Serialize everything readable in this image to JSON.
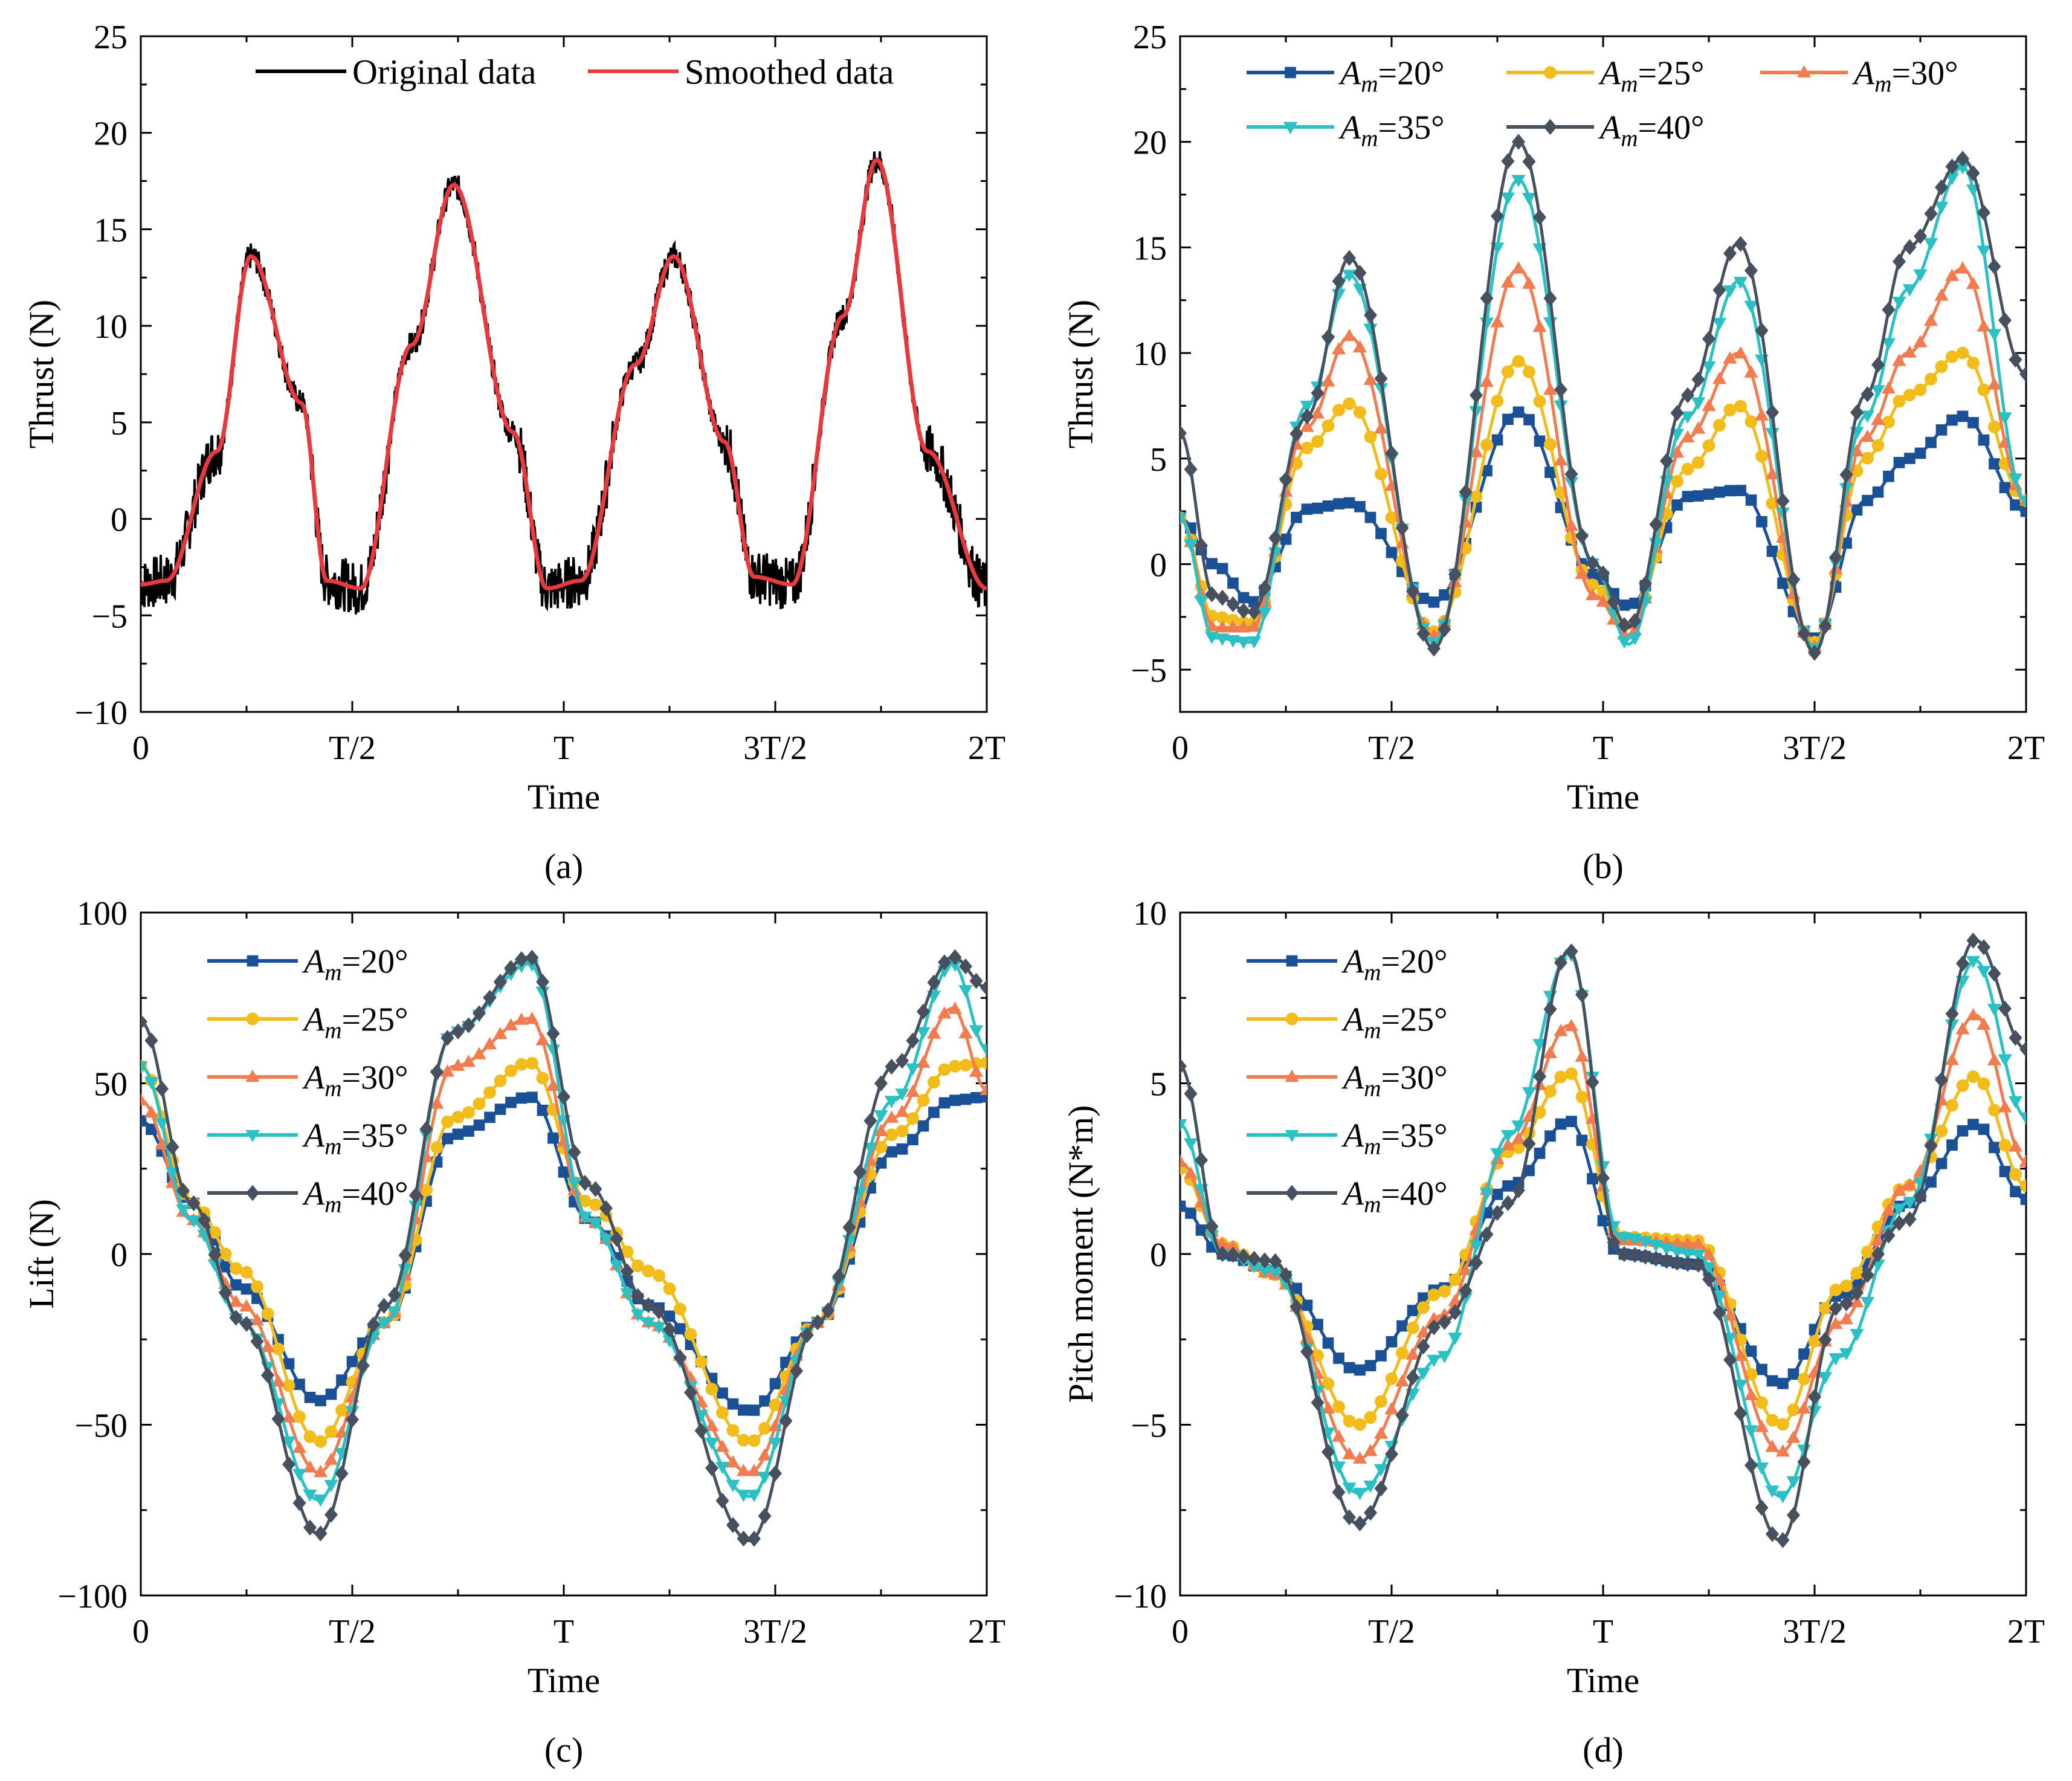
{
  "figure": {
    "x_ticks": [
      "0",
      "T/2",
      "T",
      "3T/2",
      "2T"
    ],
    "xlabel": "Time",
    "legend_prefix": "A",
    "legend_sub": "m"
  },
  "chart_data": [
    {
      "panel": "(a)",
      "type": "line",
      "title": "",
      "xlabel": "Time",
      "ylabel": "Thrust (N)",
      "xlim": [
        0,
        2
      ],
      "ylim": [
        -10,
        25
      ],
      "yticks": [
        -10,
        -5,
        0,
        5,
        10,
        15,
        20,
        25
      ],
      "ytick_labels": [
        "−10",
        "−5",
        "0",
        "5",
        "10",
        "15",
        "20",
        "25"
      ],
      "x_ticks": [
        "0",
        "T/2",
        "T",
        "3T/2",
        "2T"
      ],
      "legend": "top-center-row",
      "x_key": [
        0,
        0.06,
        0.18,
        0.26,
        0.38,
        0.44,
        0.52,
        0.64,
        0.74,
        0.88,
        0.96,
        1.04,
        1.17,
        1.26,
        1.38,
        1.45,
        1.54,
        1.66,
        1.74,
        1.86,
        2.0
      ],
      "series": [
        {
          "name": "Original data",
          "color": "#000000",
          "noisy": true,
          "y_key": [
            -3.4,
            -3.2,
            3.5,
            13.6,
            6.0,
            -3.2,
            -3.6,
            9.0,
            17.3,
            4.5,
            -3.6,
            -3.2,
            8.0,
            13.6,
            4.0,
            -3.0,
            -3.4,
            10.5,
            18.6,
            3.5,
            -3.6
          ]
        },
        {
          "name": "Smoothed data",
          "color": "#E8393E",
          "noisy": false,
          "y_key": [
            -3.4,
            -3.2,
            3.5,
            13.6,
            6.0,
            -3.2,
            -3.6,
            9.0,
            17.3,
            4.5,
            -3.6,
            -3.2,
            8.0,
            13.6,
            4.0,
            -3.0,
            -3.4,
            10.5,
            18.6,
            3.5,
            -3.6
          ]
        }
      ]
    },
    {
      "panel": "(b)",
      "type": "line",
      "title": "",
      "xlabel": "Time",
      "ylabel": "Thrust (N)",
      "xlim": [
        0,
        2
      ],
      "ylim": [
        -7,
        25
      ],
      "yticks": [
        -5,
        0,
        5,
        10,
        15,
        20,
        25
      ],
      "ytick_labels": [
        "−5",
        "0",
        "5",
        "10",
        "15",
        "20",
        "25"
      ],
      "x_ticks": [
        "0",
        "T/2",
        "T",
        "3T/2",
        "2T"
      ],
      "legend": "top-center-3col",
      "x_key": [
        0,
        0.08,
        0.17,
        0.3,
        0.4,
        0.6,
        0.8,
        0.98,
        1.06,
        1.2,
        1.32,
        1.5,
        1.62,
        1.72,
        1.85,
        2.0
      ],
      "series": [
        {
          "name": "=20°",
          "color": "#1A5196",
          "marker": "square",
          "y_key": [
            2.2,
            0.0,
            -1.8,
            2.6,
            2.9,
            -1.8,
            7.2,
            -0.5,
            -2.0,
            3.2,
            3.5,
            -3.5,
            3.0,
            5.0,
            7.0,
            2.5
          ]
        },
        {
          "name": "=25°",
          "color": "#F2BC1A",
          "marker": "circle",
          "y_key": [
            2.2,
            -2.5,
            -2.8,
            5.5,
            7.6,
            -3.2,
            9.6,
            -1.0,
            -3.0,
            4.5,
            7.5,
            -3.7,
            5.0,
            8.0,
            10.0,
            3.0
          ]
        },
        {
          "name": "=30°",
          "color": "#F07C4F",
          "marker": "triangle-up",
          "y_key": [
            2.2,
            -3.0,
            -3.0,
            6.5,
            10.8,
            -3.4,
            14.0,
            -1.5,
            -3.4,
            6.0,
            10.0,
            -3.9,
            6.0,
            10.0,
            14.0,
            3.0
          ]
        },
        {
          "name": "=35°",
          "color": "#2BC0C3",
          "marker": "triangle-down",
          "y_key": [
            2.2,
            -3.5,
            -3.7,
            7.5,
            13.7,
            -3.7,
            18.2,
            0.0,
            -3.8,
            7.0,
            13.4,
            -4.0,
            7.0,
            13.0,
            18.8,
            3.0
          ]
        },
        {
          "name": "=40°",
          "color": "#46505E",
          "marker": "diamond",
          "y_key": [
            6.2,
            -1.5,
            -2.3,
            7.0,
            14.5,
            -4.0,
            20.0,
            0.0,
            -3.0,
            8.0,
            15.2,
            -4.2,
            8.0,
            15.0,
            19.2,
            9.0
          ]
        }
      ]
    },
    {
      "panel": "(c)",
      "type": "line",
      "title": "",
      "xlabel": "Time",
      "ylabel": "Lift (N)",
      "xlim": [
        0,
        2
      ],
      "ylim": [
        -100,
        100
      ],
      "yticks": [
        -100,
        -50,
        0,
        50,
        100
      ],
      "ytick_labels": [
        "−100",
        "−50",
        "0",
        "50",
        "100"
      ],
      "x_ticks": [
        "0",
        "T/2",
        "T",
        "3T/2",
        "2T"
      ],
      "legend": "top-left-column",
      "x_key": [
        0,
        0.12,
        0.24,
        0.42,
        0.58,
        0.74,
        0.92,
        1.06,
        1.2,
        1.44,
        1.6,
        1.78,
        1.92,
        2.0
      ],
      "series": [
        {
          "name": "=20°",
          "color": "#1A5196",
          "marker": "square",
          "y_key": [
            39,
            15,
            -10,
            -43,
            -20,
            35,
            46,
            10,
            -15,
            -46,
            -20,
            30,
            45,
            46
          ]
        },
        {
          "name": "=25°",
          "color": "#F2BC1A",
          "marker": "circle",
          "y_key": [
            55,
            15,
            -5,
            -55,
            -20,
            40,
            56,
            15,
            -5,
            -55,
            -20,
            35,
            55,
            56
          ]
        },
        {
          "name": "=30°",
          "color": "#F07C4F",
          "marker": "triangle-up",
          "y_key": [
            45,
            10,
            -15,
            -64,
            -20,
            55,
            69,
            10,
            -20,
            -64,
            -20,
            40,
            72,
            48
          ]
        },
        {
          "name": "=35°",
          "color": "#2BC0C3",
          "marker": "triangle-down",
          "y_key": [
            55,
            10,
            -20,
            -72,
            -20,
            65,
            85,
            10,
            -20,
            -71,
            -20,
            45,
            85,
            60
          ]
        },
        {
          "name": "=40°",
          "color": "#46505E",
          "marker": "diamond",
          "y_key": [
            68,
            15,
            -20,
            -82,
            -15,
            65,
            87,
            20,
            -15,
            -84,
            -20,
            55,
            87,
            78
          ]
        }
      ]
    },
    {
      "panel": "(d)",
      "type": "line",
      "title": "",
      "xlabel": "Time",
      "ylabel": "Pitch moment (N*m)",
      "xlim": [
        0,
        2
      ],
      "ylim": [
        -10,
        10
      ],
      "yticks": [
        -10,
        -5,
        0,
        5,
        10
      ],
      "ytick_labels": [
        "−10",
        "−5",
        "0",
        "5",
        "10"
      ],
      "x_ticks": [
        "0",
        "T/2",
        "T",
        "3T/2",
        "2T"
      ],
      "legend": "top-left-column",
      "x_key": [
        0,
        0.1,
        0.22,
        0.42,
        0.62,
        0.78,
        0.92,
        1.04,
        1.22,
        1.42,
        1.56,
        1.72,
        1.88,
        2.0
      ],
      "series": [
        {
          "name": "=20°",
          "color": "#1A5196",
          "marker": "square",
          "y_key": [
            1.4,
            0.0,
            -0.5,
            -3.4,
            -1.0,
            2.0,
            3.9,
            0.0,
            -0.3,
            -3.8,
            -1.2,
            1.5,
            3.8,
            1.6
          ]
        },
        {
          "name": "=25°",
          "color": "#F2BC1A",
          "marker": "circle",
          "y_key": [
            2.5,
            0.3,
            -0.6,
            -5.0,
            -1.1,
            3.0,
            5.3,
            0.5,
            0.4,
            -5.0,
            -1.0,
            2.0,
            5.2,
            2.0
          ]
        },
        {
          "name": "=30°",
          "color": "#F07C4F",
          "marker": "triangle-up",
          "y_key": [
            2.7,
            0.3,
            -0.6,
            -6.0,
            -1.8,
            3.2,
            6.7,
            0.4,
            0.3,
            -5.8,
            -2.0,
            2.0,
            7.0,
            2.7
          ]
        },
        {
          "name": "=35°",
          "color": "#2BC0C3",
          "marker": "triangle-down",
          "y_key": [
            3.8,
            0.0,
            -0.5,
            -7.0,
            -3.0,
            3.5,
            8.8,
            0.5,
            0.0,
            -7.1,
            -3.0,
            1.5,
            8.6,
            4.0
          ]
        },
        {
          "name": "=40°",
          "color": "#46505E",
          "marker": "diamond",
          "y_key": [
            5.5,
            0.0,
            -0.2,
            -7.9,
            -2.0,
            1.5,
            8.9,
            0.0,
            -0.3,
            -8.4,
            -1.5,
            1.0,
            9.2,
            6.0
          ]
        }
      ]
    }
  ]
}
